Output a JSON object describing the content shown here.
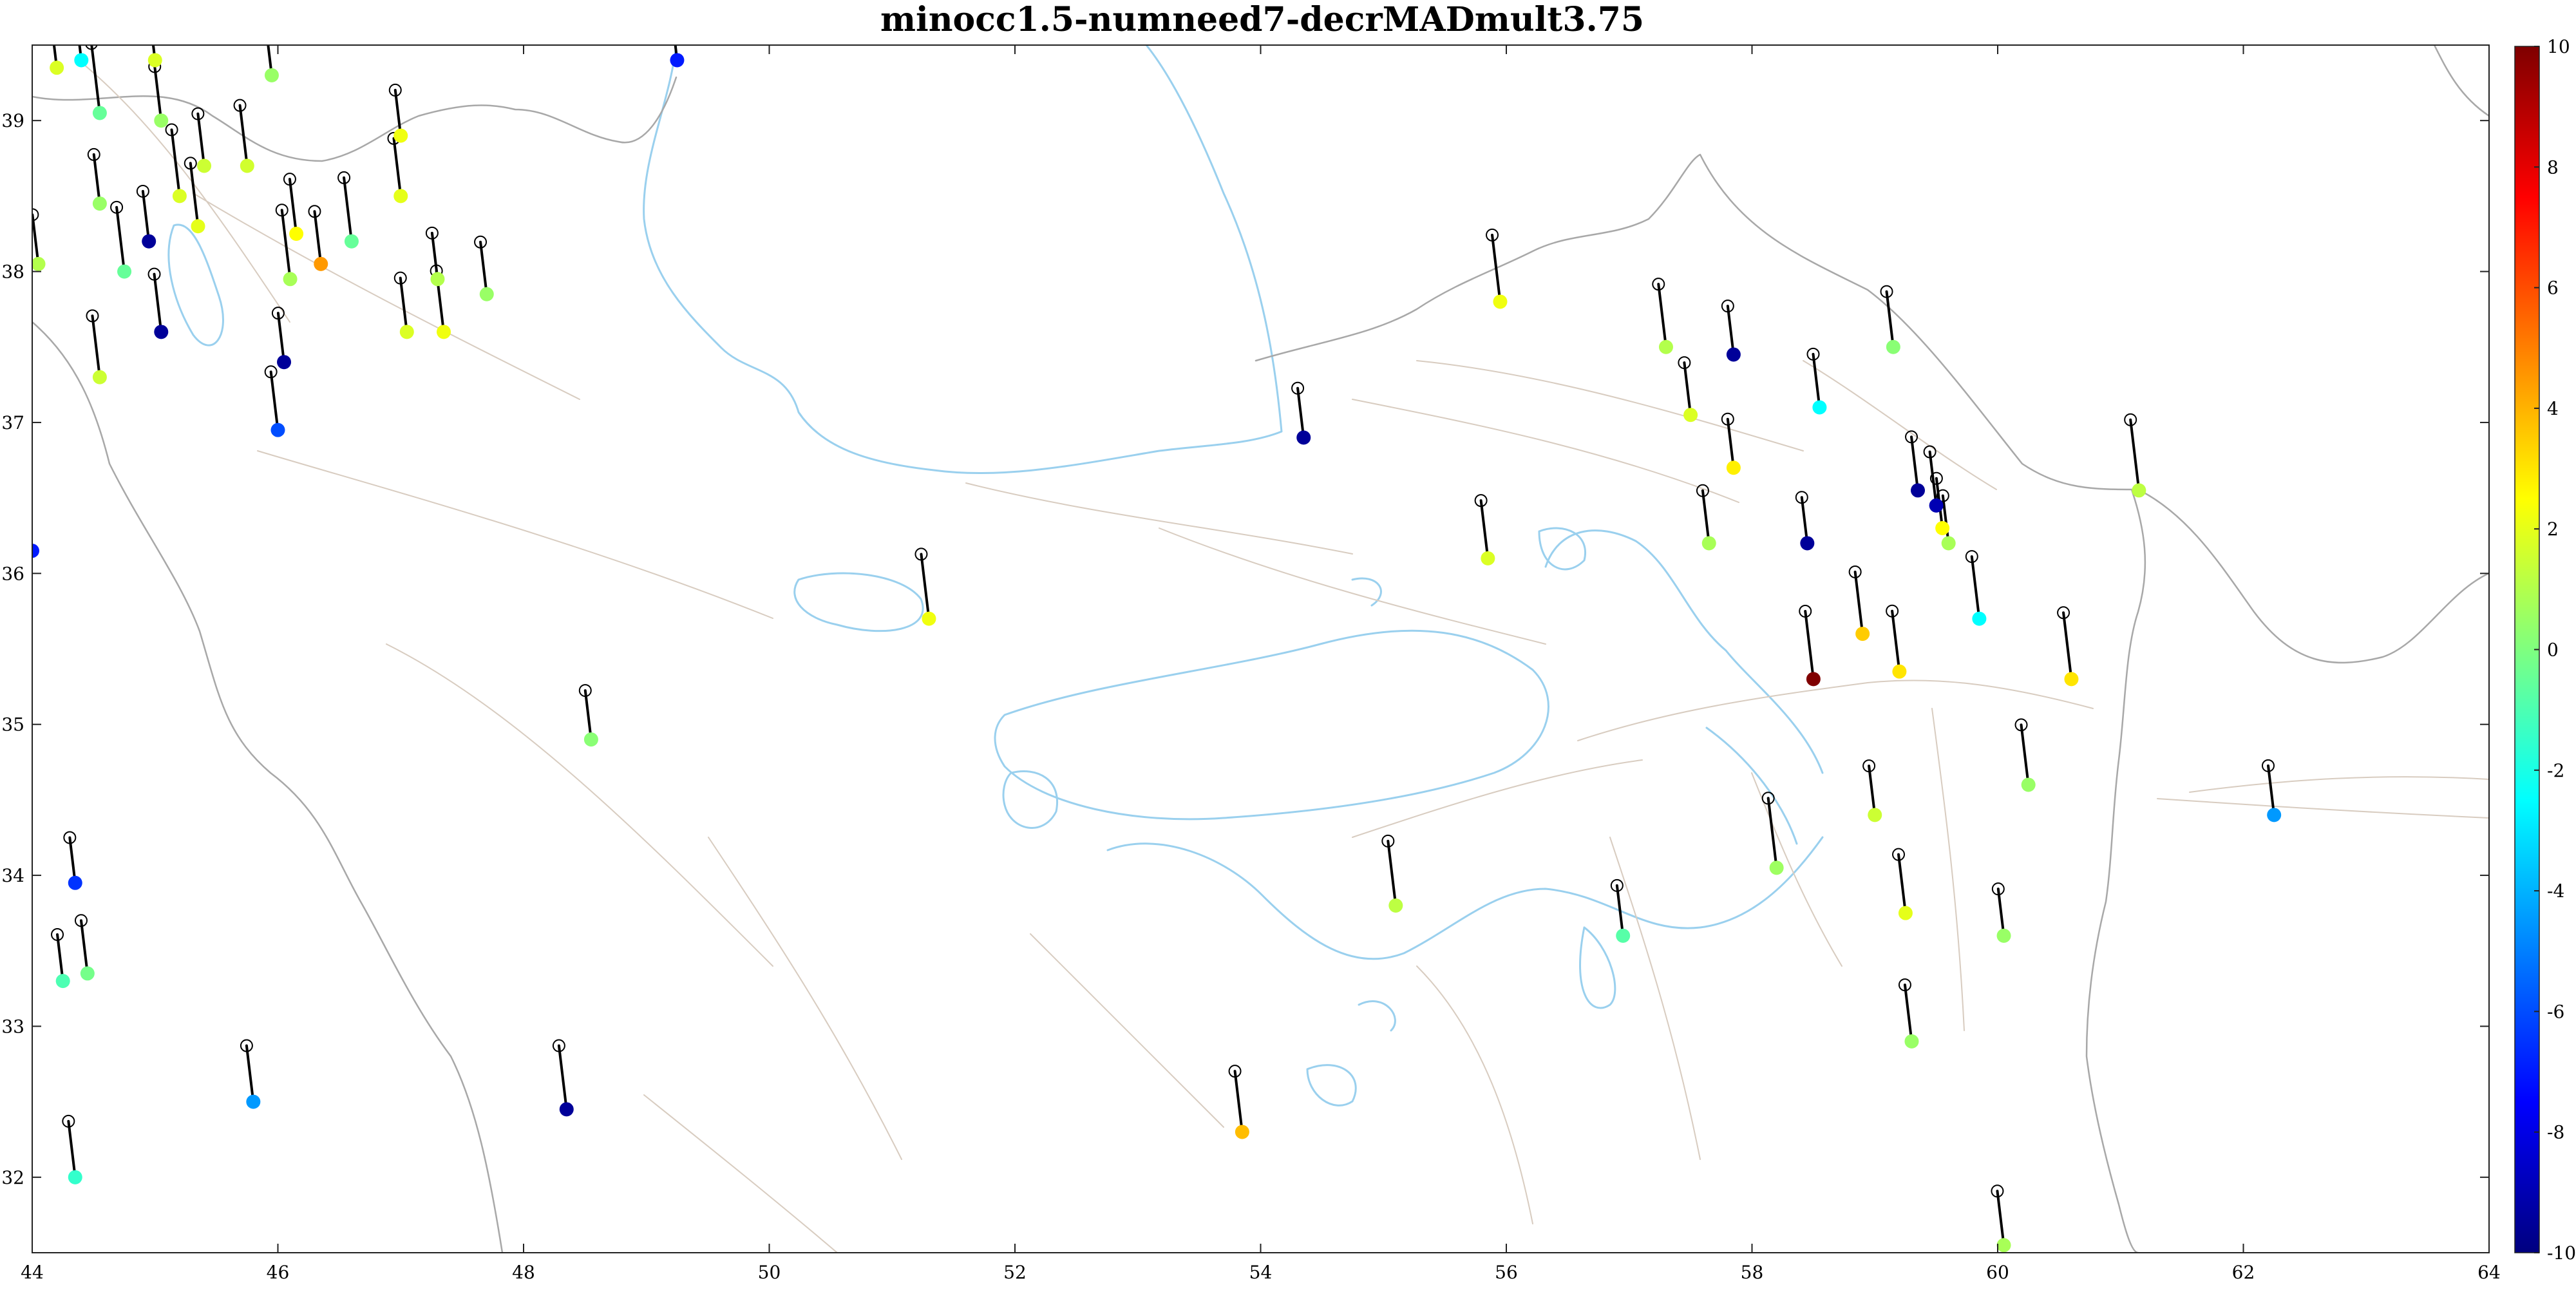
{
  "chart_data": {
    "type": "scatter",
    "title": "minocc1.5-numneed7-decrMADmult3.75",
    "xlim": [
      44,
      64
    ],
    "ylim": [
      31.5,
      39.5
    ],
    "xticks": [
      44,
      46,
      48,
      50,
      52,
      54,
      56,
      58,
      60,
      62,
      64
    ],
    "yticks": [
      32,
      33,
      34,
      35,
      36,
      37,
      38,
      39
    ],
    "colorbar": {
      "range": [
        -10,
        10
      ],
      "ticks": [
        10,
        8,
        6,
        4,
        2,
        0,
        -2,
        -4,
        -6,
        -8,
        -10
      ],
      "colormap": "jet",
      "placement": "right"
    },
    "colors": {
      "coastline": "#9ad0ee",
      "borders": "#a8a8a8",
      "faults": "#d8ccc0",
      "vectors": "#000000"
    },
    "stations": [
      {
        "lon": 44.2,
        "lat": 39.35,
        "v": 1.8
      },
      {
        "lon": 44.4,
        "lat": 39.4,
        "v": -2.5
      },
      {
        "lon": 44.05,
        "lat": 38.05,
        "v": 1.0
      },
      {
        "lon": 44.55,
        "lat": 39.05,
        "v": -0.5
      },
      {
        "lon": 44.55,
        "lat": 38.45,
        "v": 0.5
      },
      {
        "lon": 44.55,
        "lat": 37.3,
        "v": 1.5
      },
      {
        "lon": 44.75,
        "lat": 38.0,
        "v": -0.5
      },
      {
        "lon": 44.95,
        "lat": 38.2,
        "v": -9.5
      },
      {
        "lon": 45.05,
        "lat": 37.6,
        "v": -9.5
      },
      {
        "lon": 45.05,
        "lat": 39.0,
        "v": 0.5
      },
      {
        "lon": 45.0,
        "lat": 39.4,
        "v": 1.8
      },
      {
        "lon": 45.2,
        "lat": 38.5,
        "v": 1.8
      },
      {
        "lon": 45.35,
        "lat": 38.3,
        "v": 2.0
      },
      {
        "lon": 45.4,
        "lat": 38.7,
        "v": 1.5
      },
      {
        "lon": 45.75,
        "lat": 38.7,
        "v": 1.6
      },
      {
        "lon": 45.95,
        "lat": 39.3,
        "v": 0.5
      },
      {
        "lon": 46.05,
        "lat": 37.4,
        "v": -9.5
      },
      {
        "lon": 46.0,
        "lat": 36.95,
        "v": -6.0
      },
      {
        "lon": 46.15,
        "lat": 38.25,
        "v": 2.5
      },
      {
        "lon": 46.1,
        "lat": 37.95,
        "v": 0.8
      },
      {
        "lon": 46.35,
        "lat": 38.05,
        "v": 4.5
      },
      {
        "lon": 46.6,
        "lat": 38.2,
        "v": -0.5
      },
      {
        "lon": 47.0,
        "lat": 38.9,
        "v": 2.2
      },
      {
        "lon": 47.0,
        "lat": 38.5,
        "v": 2.0
      },
      {
        "lon": 47.05,
        "lat": 37.6,
        "v": 1.8
      },
      {
        "lon": 47.3,
        "lat": 37.95,
        "v": 1.0
      },
      {
        "lon": 47.35,
        "lat": 37.6,
        "v": 2.2
      },
      {
        "lon": 47.7,
        "lat": 37.85,
        "v": 0.5
      },
      {
        "lon": 49.25,
        "lat": 39.4,
        "v": -7.0
      },
      {
        "lon": 44.0,
        "lat": 36.15,
        "v": -7.0
      },
      {
        "lon": 44.35,
        "lat": 33.95,
        "v": -6.5
      },
      {
        "lon": 44.25,
        "lat": 33.3,
        "v": -1.0
      },
      {
        "lon": 44.45,
        "lat": 33.35,
        "v": -0.2
      },
      {
        "lon": 44.35,
        "lat": 32.0,
        "v": -1.5
      },
      {
        "lon": 45.8,
        "lat": 32.5,
        "v": -4.5
      },
      {
        "lon": 48.35,
        "lat": 32.45,
        "v": -9.5
      },
      {
        "lon": 48.55,
        "lat": 34.9,
        "v": 0.2
      },
      {
        "lon": 51.3,
        "lat": 35.7,
        "v": 2.2
      },
      {
        "lon": 53.85,
        "lat": 32.3,
        "v": 3.8
      },
      {
        "lon": 54.35,
        "lat": 36.9,
        "v": -9.5
      },
      {
        "lon": 55.1,
        "lat": 33.8,
        "v": 1.2
      },
      {
        "lon": 55.85,
        "lat": 36.1,
        "v": 1.8
      },
      {
        "lon": 55.95,
        "lat": 37.8,
        "v": 2.2
      },
      {
        "lon": 56.95,
        "lat": 33.6,
        "v": -0.8
      },
      {
        "lon": 57.3,
        "lat": 37.5,
        "v": 1.0
      },
      {
        "lon": 57.5,
        "lat": 37.05,
        "v": 1.8
      },
      {
        "lon": 57.65,
        "lat": 36.2,
        "v": 0.8
      },
      {
        "lon": 57.85,
        "lat": 36.7,
        "v": 2.8
      },
      {
        "lon": 57.85,
        "lat": 37.45,
        "v": -9.5
      },
      {
        "lon": 58.2,
        "lat": 34.05,
        "v": 0.6
      },
      {
        "lon": 58.45,
        "lat": 36.2,
        "v": -9.5
      },
      {
        "lon": 58.5,
        "lat": 35.3,
        "v": 10.0
      },
      {
        "lon": 58.55,
        "lat": 37.1,
        "v": -2.5
      },
      {
        "lon": 58.9,
        "lat": 35.6,
        "v": 3.5
      },
      {
        "lon": 59.0,
        "lat": 34.4,
        "v": 1.5
      },
      {
        "lon": 59.15,
        "lat": 37.5,
        "v": 0.2
      },
      {
        "lon": 59.2,
        "lat": 35.35,
        "v": 3.0
      },
      {
        "lon": 59.25,
        "lat": 33.75,
        "v": 2.0
      },
      {
        "lon": 59.3,
        "lat": 32.9,
        "v": 0.5
      },
      {
        "lon": 59.35,
        "lat": 36.55,
        "v": -9.5
      },
      {
        "lon": 59.5,
        "lat": 36.45,
        "v": -9.0
      },
      {
        "lon": 59.55,
        "lat": 36.3,
        "v": 2.5
      },
      {
        "lon": 59.6,
        "lat": 36.2,
        "v": 0.8
      },
      {
        "lon": 59.85,
        "lat": 35.7,
        "v": -2.5
      },
      {
        "lon": 60.05,
        "lat": 33.6,
        "v": 0.5
      },
      {
        "lon": 60.05,
        "lat": 31.55,
        "v": 0.8
      },
      {
        "lon": 60.25,
        "lat": 34.6,
        "v": 0.5
      },
      {
        "lon": 60.6,
        "lat": 35.3,
        "v": 3.0
      },
      {
        "lon": 61.15,
        "lat": 36.55,
        "v": 1.2
      },
      {
        "lon": 62.25,
        "lat": 34.4,
        "v": -4.5
      }
    ]
  }
}
